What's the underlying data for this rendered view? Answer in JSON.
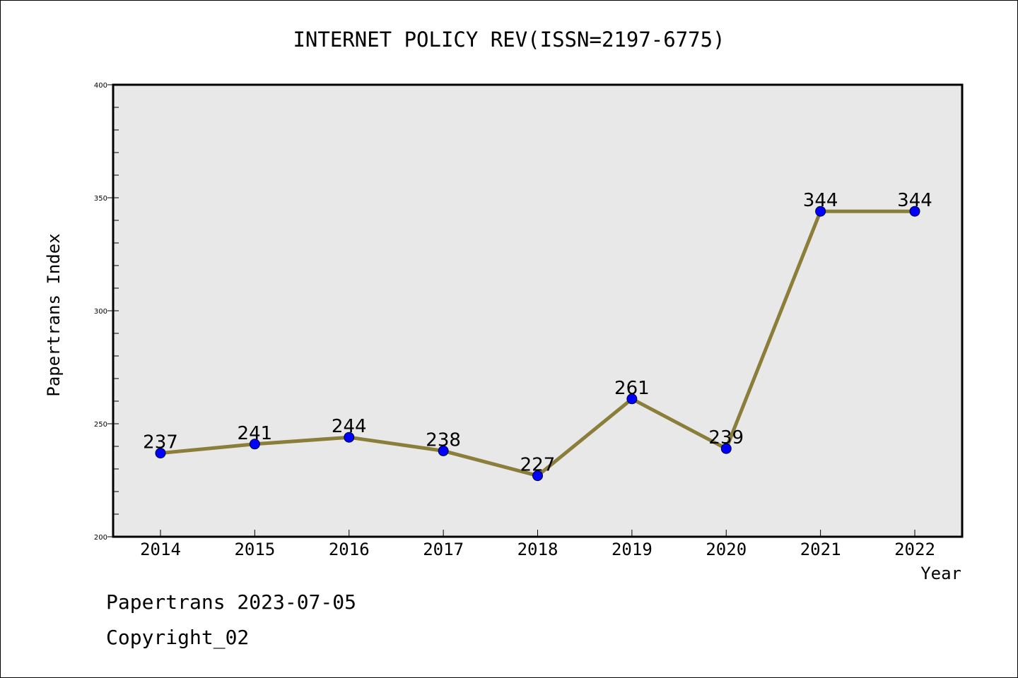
{
  "chart_data": {
    "type": "line",
    "title": "INTERNET POLICY REV(ISSN=2197-6775)",
    "xlabel": "Year",
    "ylabel": "Papertrans Index",
    "categories": [
      "2014",
      "2015",
      "2016",
      "2017",
      "2018",
      "2019",
      "2020",
      "2021",
      "2022"
    ],
    "values": [
      237,
      241,
      244,
      238,
      227,
      261,
      239,
      344,
      344
    ],
    "ylim": [
      200,
      400
    ],
    "yticks": [
      "200",
      "250",
      "300",
      "350",
      "400"
    ],
    "grid": false,
    "colors": {
      "line": "#8b7d3a",
      "marker": "#0000ff",
      "plot_bg": "#e8e8e8"
    }
  },
  "footer": {
    "line1": "Papertrans 2023-07-05",
    "line2": "Copyright_02"
  }
}
